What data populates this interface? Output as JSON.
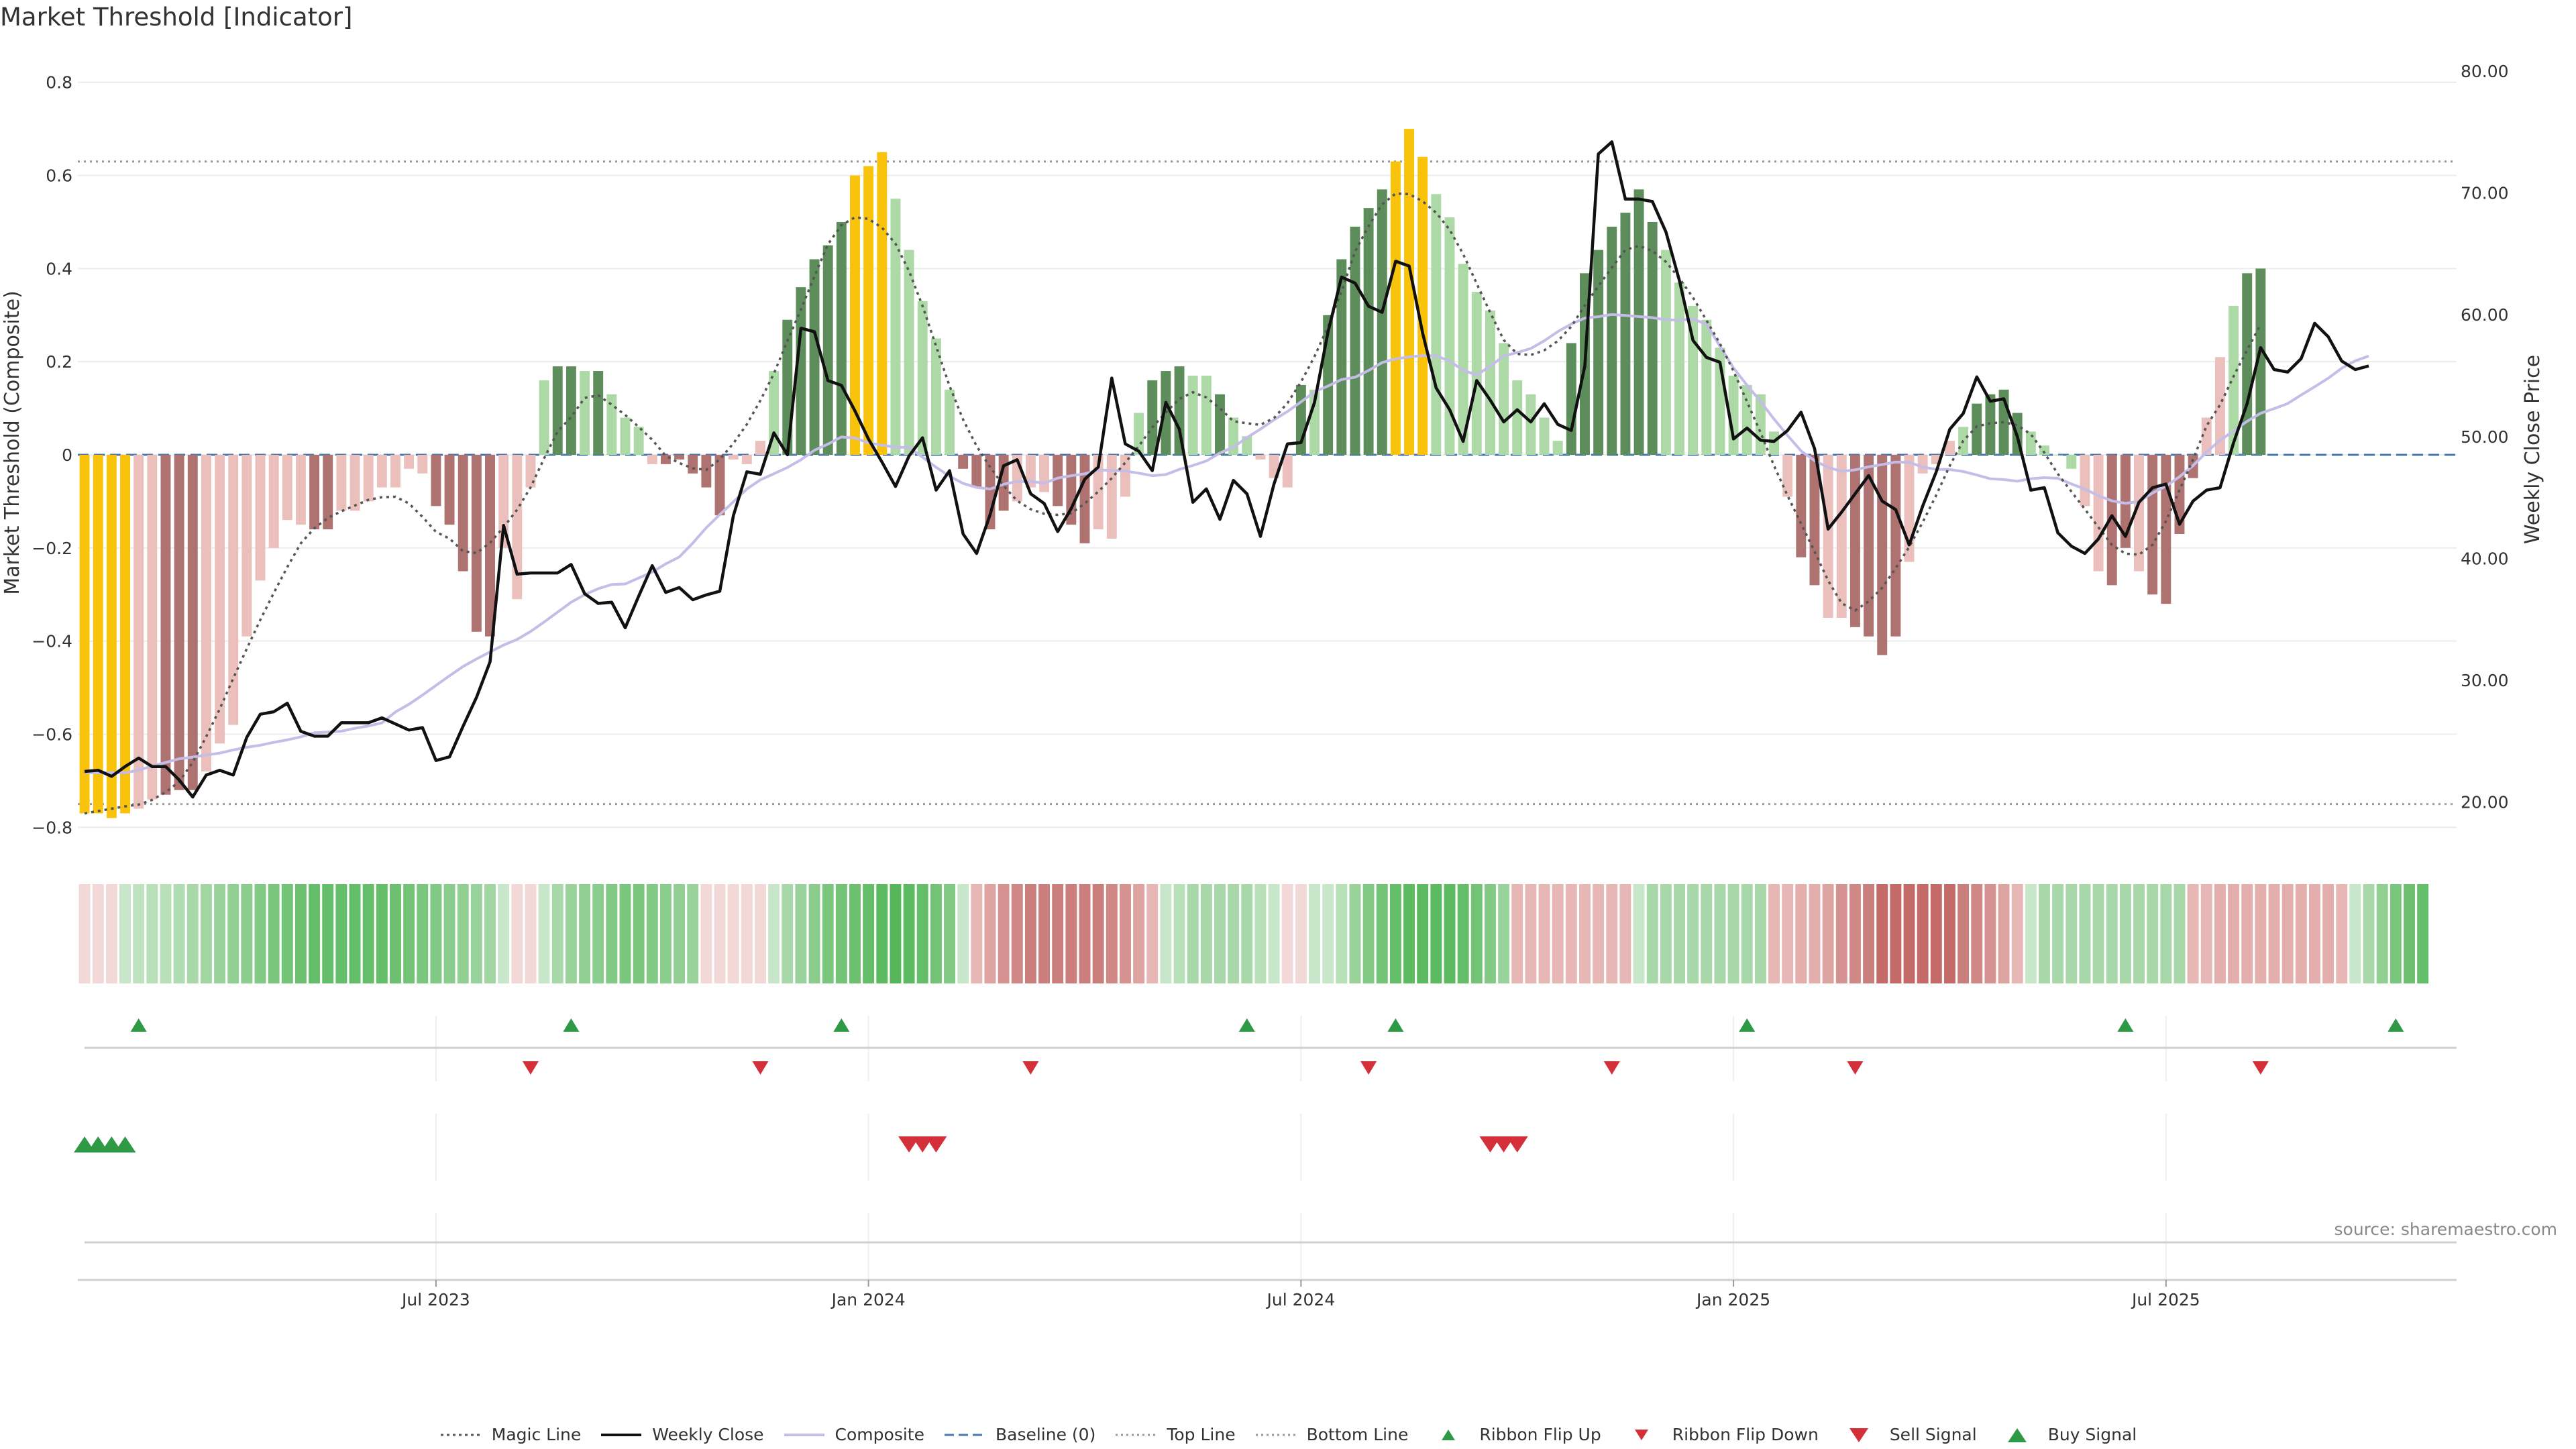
{
  "title": "Market Threshold [Indicator]",
  "source": "source: sharemaestro.com",
  "chart_data": {
    "type": "bar",
    "ylabel": "Market Threshold (Composite)",
    "y2label": "Weekly Close Price",
    "ylim": [
      -0.85,
      0.85
    ],
    "y2lim": [
      16.0,
      81.0
    ],
    "yticks": [
      "0.8",
      "0.6",
      "0.4",
      "0.2",
      "0",
      "−0.2",
      "−0.4",
      "−0.6",
      "−0.8"
    ],
    "yticks_values": [
      0.8,
      0.6,
      0.4,
      0.2,
      0,
      -0.2,
      -0.4,
      -0.6,
      -0.8
    ],
    "y2ticks": [
      "80.00",
      "70.00",
      "60.00",
      "50.00",
      "40.00",
      "30.00",
      "20.00"
    ],
    "y2ticks_values": [
      80,
      70,
      60,
      50,
      40,
      30,
      20
    ],
    "xticks": [
      "Jul 2023",
      "Jan 2024",
      "Jul 2024",
      "Jan 2025",
      "Jul 2025"
    ],
    "xticks_index": [
      26.5,
      58.5,
      90.5,
      122.5,
      154.5
    ],
    "top_line": 0.63,
    "bottom_line": -0.75,
    "n_weeks": 176,
    "composite": [
      -0.77,
      -0.77,
      -0.78,
      -0.77,
      -0.76,
      -0.74,
      -0.73,
      -0.72,
      -0.72,
      -0.68,
      -0.62,
      -0.58,
      -0.39,
      -0.27,
      -0.2,
      -0.14,
      -0.15,
      -0.16,
      -0.16,
      -0.12,
      -0.12,
      -0.1,
      -0.07,
      -0.07,
      -0.03,
      -0.04,
      -0.11,
      -0.15,
      -0.25,
      -0.38,
      -0.39,
      -0.2,
      -0.31,
      -0.07,
      0.16,
      0.19,
      0.19,
      0.18,
      0.18,
      0.13,
      0.08,
      0.06,
      -0.02,
      -0.02,
      -0.01,
      -0.04,
      -0.07,
      -0.13,
      -0.01,
      -0.02,
      0.03,
      0.18,
      0.29,
      0.36,
      0.42,
      0.45,
      0.5,
      0.6,
      0.62,
      0.65,
      0.55,
      0.44,
      0.33,
      0.25,
      0.14,
      -0.03,
      -0.07,
      -0.16,
      -0.12,
      -0.1,
      -0.07,
      -0.08,
      -0.11,
      -0.15,
      -0.19,
      -0.16,
      -0.18,
      -0.09,
      0.09,
      0.16,
      0.18,
      0.19,
      0.17,
      0.17,
      0.13,
      0.08,
      0.04,
      -0.01,
      -0.05,
      -0.07,
      0.15,
      0.14,
      0.3,
      0.42,
      0.49,
      0.53,
      0.57,
      0.63,
      0.7,
      0.64,
      0.56,
      0.51,
      0.41,
      0.35,
      0.31,
      0.24,
      0.16,
      0.13,
      0.08,
      0.03,
      0.24,
      0.39,
      0.44,
      0.49,
      0.52,
      0.57,
      0.5,
      0.44,
      0.37,
      0.32,
      0.29,
      0.23,
      0.17,
      0.15,
      0.13,
      0.05,
      -0.09,
      -0.22,
      -0.28,
      -0.35,
      -0.35,
      -0.37,
      -0.39,
      -0.43,
      -0.39,
      -0.23,
      -0.04,
      -0.02,
      0.03,
      0.06,
      0.11,
      0.13,
      0.14,
      0.09,
      0.05,
      0.02,
      0.0,
      -0.03,
      -0.11,
      -0.25,
      -0.28,
      -0.2,
      -0.25,
      -0.3,
      -0.32,
      -0.17,
      -0.05,
      0.08,
      0.21,
      0.32,
      0.39,
      0.4
    ],
    "weekly_close": [
      22.5,
      22.6,
      22.1,
      22.9,
      23.6,
      22.9,
      22.9,
      21.8,
      20.4,
      22.2,
      22.6,
      22.2,
      25.3,
      27.2,
      27.4,
      28.1,
      25.8,
      25.4,
      25.4,
      26.5,
      26.5,
      26.5,
      26.9,
      26.4,
      25.9,
      26.1,
      23.4,
      23.7,
      26.2,
      28.6,
      31.5,
      42.7,
      38.7,
      38.8,
      38.8,
      38.8,
      39.5,
      37.1,
      36.3,
      36.4,
      34.3,
      36.9,
      39.4,
      37.2,
      37.6,
      36.6,
      37.0,
      37.3,
      43.5,
      47.1,
      46.9,
      50.3,
      48.5,
      58.9,
      58.6,
      54.6,
      54.2,
      52.1,
      49.8,
      47.9,
      45.9,
      48.4,
      49.9,
      45.6,
      47.2,
      42.0,
      40.4,
      43.6,
      47.6,
      48.1,
      45.3,
      44.5,
      42.2,
      44.1,
      46.5,
      47.5,
      54.8,
      49.4,
      48.8,
      47.2,
      52.8,
      50.6,
      44.6,
      45.7,
      43.2,
      46.4,
      45.3,
      41.8,
      46.1,
      49.4,
      49.5,
      52.8,
      58.6,
      63.1,
      62.6,
      60.7,
      60.2,
      64.4,
      64.0,
      58.5,
      54.0,
      52.2,
      49.6,
      54.6,
      53.0,
      51.2,
      52.2,
      51.2,
      52.7,
      51.0,
      50.5,
      55.8,
      73.2,
      74.2,
      69.5,
      69.5,
      69.3,
      66.8,
      62.8,
      57.9,
      56.5,
      56.1,
      49.8,
      50.7,
      49.7,
      49.6,
      50.5,
      52.0,
      49.0,
      42.4,
      43.8,
      45.3,
      46.8,
      44.7,
      44.0,
      41.1,
      44.3,
      47.1,
      50.6,
      51.9,
      54.9,
      52.9,
      53.1,
      50.0,
      45.6,
      45.8,
      42.1,
      41.0,
      40.4,
      41.6,
      43.5,
      41.8,
      44.6,
      45.8,
      46.1,
      42.8,
      44.7,
      45.6,
      45.8,
      49.5,
      52.7,
      57.3,
      55.5,
      55.3,
      56.4,
      59.3,
      58.2,
      56.2,
      55.5,
      55.8
    ],
    "bar_colors": [
      "#f9c20b",
      "#f9c20b",
      "#f9c20b",
      "#f9c20b",
      "#ebbfbb",
      "#ebbfbb",
      "#ae7270",
      "#ae7270",
      "#ae7270",
      "#ebbfbb",
      "#ebbfbb",
      "#ebbfbb",
      "#ebbfbb",
      "#ebbfbb",
      "#ebbfbb",
      "#ebbfbb",
      "#ebbfbb",
      "#ae7270",
      "#ae7270",
      "#ebbfbb",
      "#ebbfbb",
      "#ebbfbb",
      "#ebbfbb",
      "#ebbfbb",
      "#ebbfbb",
      "#ebbfbb",
      "#ae7270",
      "#ae7270",
      "#ae7270",
      "#ae7270",
      "#ae7270",
      "#ebbfbb",
      "#ebbfbb",
      "#ebbfbb",
      "#acd9a5",
      "#5c8d5a",
      "#5c8d5a",
      "#acd9a5",
      "#5c8d5a",
      "#acd9a5",
      "#acd9a5",
      "#acd9a5",
      "#ebbfbb",
      "#ae7270",
      "#ae7270",
      "#ae7270",
      "#ae7270",
      "#ae7270",
      "#ebbfbb",
      "#ebbfbb",
      "#ebbfbb",
      "#acd9a5",
      "#5c8d5a",
      "#5c8d5a",
      "#5c8d5a",
      "#5c8d5a",
      "#5c8d5a",
      "#f9c20b",
      "#f9c20b",
      "#f9c20b",
      "#acd9a5",
      "#acd9a5",
      "#acd9a5",
      "#acd9a5",
      "#acd9a5",
      "#ae7270",
      "#ae7270",
      "#ae7270",
      "#ae7270",
      "#ebbfbb",
      "#ebbfbb",
      "#ebbfbb",
      "#ae7270",
      "#ae7270",
      "#ae7270",
      "#ebbfbb",
      "#ebbfbb",
      "#ebbfbb",
      "#acd9a5",
      "#5c8d5a",
      "#5c8d5a",
      "#5c8d5a",
      "#acd9a5",
      "#acd9a5",
      "#5c8d5a",
      "#acd9a5",
      "#acd9a5",
      "#ebbfbb",
      "#ebbfbb",
      "#ebbfbb",
      "#5c8d5a",
      "#acd9a5",
      "#5c8d5a",
      "#5c8d5a",
      "#5c8d5a",
      "#5c8d5a",
      "#5c8d5a",
      "#f9c20b",
      "#f9c20b",
      "#f9c20b",
      "#acd9a5",
      "#acd9a5",
      "#acd9a5",
      "#acd9a5",
      "#acd9a5",
      "#acd9a5",
      "#acd9a5",
      "#acd9a5",
      "#acd9a5",
      "#acd9a5",
      "#5c8d5a",
      "#5c8d5a",
      "#5c8d5a",
      "#5c8d5a",
      "#5c8d5a",
      "#5c8d5a",
      "#5c8d5a",
      "#acd9a5",
      "#acd9a5",
      "#acd9a5",
      "#acd9a5",
      "#acd9a5",
      "#acd9a5",
      "#acd9a5",
      "#acd9a5",
      "#acd9a5",
      "#ebbfbb",
      "#ae7270",
      "#ae7270",
      "#ebbfbb",
      "#ebbfbb",
      "#ae7270",
      "#ae7270",
      "#ae7270",
      "#ae7270",
      "#ebbfbb",
      "#ebbfbb",
      "#ebbfbb",
      "#ebbfbb",
      "#acd9a5",
      "#5c8d5a",
      "#5c8d5a",
      "#5c8d5a",
      "#5c8d5a",
      "#acd9a5",
      "#acd9a5",
      "#acd9a5",
      "#acd9a5",
      "#ebbfbb",
      "#ebbfbb",
      "#ae7270",
      "#ae7270",
      "#ebbfbb",
      "#ae7270",
      "#ae7270",
      "#ae7270",
      "#ae7270",
      "#ebbfbb",
      "#ebbfbb",
      "#acd9a5",
      "#5c8d5a",
      "#5c8d5a",
      "#5c8d5a",
      "#5c8d5a"
    ],
    "ribbon_colors": [
      "#f2d8d7",
      "#f2d8d7",
      "#f2d8d7",
      "#c8e6c9",
      "#bfe2c0",
      "#b7dfb8",
      "#b7dfb8",
      "#b0dcb1",
      "#a8d8a9",
      "#a1d5a2",
      "#99d29b",
      "#91cf93",
      "#8acc8c",
      "#82c985",
      "#7bc67d",
      "#73c376",
      "#6cc06f",
      "#64bd68",
      "#64bd68",
      "#64bd68",
      "#64bd68",
      "#64bd68",
      "#64bd68",
      "#6cc06f",
      "#73c376",
      "#7bc67d",
      "#82c985",
      "#8acc8c",
      "#91cf93",
      "#99d29b",
      "#a1d5a2",
      "#c8e6c9",
      "#f2d8d7",
      "#f2d8d7",
      "#c8e6c9",
      "#a8d8a9",
      "#99d29b",
      "#91cf93",
      "#8acc8c",
      "#82c985",
      "#7bc67d",
      "#7bc67d",
      "#82c985",
      "#8acc8c",
      "#91cf93",
      "#99d29b",
      "#f2d8d7",
      "#f2d8d7",
      "#f2d8d7",
      "#f2d8d7",
      "#f2d8d7",
      "#c8e6c9",
      "#a8d8a9",
      "#99d29b",
      "#8acc8c",
      "#7bc67d",
      "#73c376",
      "#6cc06f",
      "#64bd68",
      "#5cba61",
      "#55b75a",
      "#5cba61",
      "#64bd68",
      "#73c376",
      "#82c985",
      "#c8e6c9",
      "#e7b7b5",
      "#dea4a2",
      "#d59290",
      "#d08886",
      "#cb7f7d",
      "#cb7f7d",
      "#cb7f7d",
      "#cb7f7d",
      "#cb7f7d",
      "#cb7f7d",
      "#d08886",
      "#d59290",
      "#dea4a2",
      "#e7b7b5",
      "#c8e6c9",
      "#b7dfb8",
      "#a8d8a9",
      "#a8d8a9",
      "#a8d8a9",
      "#a8d8a9",
      "#a8d8a9",
      "#b7dfb8",
      "#c8e6c9",
      "#f2d8d7",
      "#f2d8d7",
      "#c8e6c9",
      "#c8e6c9",
      "#b7dfb8",
      "#99d29b",
      "#82c985",
      "#73c376",
      "#64bd68",
      "#5cba61",
      "#5cba61",
      "#5cba61",
      "#5cba61",
      "#64bd68",
      "#73c376",
      "#82c985",
      "#99d29b",
      "#e7b7b5",
      "#e7b7b5",
      "#e7b7b5",
      "#e7b7b5",
      "#e7b7b5",
      "#e7b7b5",
      "#e7b7b5",
      "#e7b7b5",
      "#e7b7b5",
      "#c8e6c9",
      "#a8d8a9",
      "#a8d8a9",
      "#a8d8a9",
      "#a8d8a9",
      "#a8d8a9",
      "#a8d8a9",
      "#a8d8a9",
      "#a8d8a9",
      "#a8d8a9",
      "#e7b7b5",
      "#e7b7b5",
      "#e3aeac",
      "#e3aeac",
      "#dea4a2",
      "#d59290",
      "#d08886",
      "#cb7f7d",
      "#c46b69",
      "#c46b69",
      "#c46b69",
      "#c46b69",
      "#c46b69",
      "#c46b69",
      "#cb7f7d",
      "#d08886",
      "#d59290",
      "#dea4a2",
      "#e7b7b5",
      "#c8e6c9",
      "#a8d8a9",
      "#a8d8a9",
      "#a8d8a9",
      "#a8d8a9",
      "#a8d8a9",
      "#a8d8a9",
      "#a8d8a9",
      "#a8d8a9",
      "#a8d8a9",
      "#a8d8a9",
      "#a8d8a9",
      "#e7b7b5",
      "#e7b7b5",
      "#e3aeac",
      "#e3aeac",
      "#e3aeac",
      "#e3aeac",
      "#e3aeac",
      "#e3aeac",
      "#e3aeac",
      "#e3aeac",
      "#e3aeac",
      "#e7b7b5",
      "#c8e6c9",
      "#a8d8a9",
      "#91cf93",
      "#7bc67d",
      "#6cc06f",
      "#64bd68"
    ],
    "ribbon_flip_up_weeks": [
      4,
      36,
      56,
      86,
      97,
      123,
      151,
      171
    ],
    "ribbon_flip_down_weeks": [
      33,
      50,
      70,
      95,
      113,
      131,
      161
    ],
    "buy_signal_weeks": [
      0,
      1,
      2,
      3
    ],
    "sell_signal_weeks": [
      61,
      62,
      63,
      104,
      105,
      106
    ],
    "legend": [
      {
        "label": "Magic Line",
        "symbol": "dotted-dark"
      },
      {
        "label": "Weekly Close",
        "symbol": "line-black"
      },
      {
        "label": "Composite",
        "symbol": "line-lavender"
      },
      {
        "label": "Baseline (0)",
        "symbol": "dashed-blue"
      },
      {
        "label": "Top Line",
        "symbol": "dotted-grey"
      },
      {
        "label": "Bottom Line",
        "symbol": "dotted-grey"
      },
      {
        "label": "Ribbon Flip Up",
        "symbol": "triangle-up-green"
      },
      {
        "label": "Ribbon Flip Down",
        "symbol": "triangle-down-red"
      },
      {
        "label": "Sell Signal",
        "symbol": "triangle-down-red-large"
      },
      {
        "label": "Buy Signal",
        "symbol": "triangle-up-green-large"
      }
    ],
    "colors": {
      "weekly_close": "#111111",
      "composite_line": "#c4bde8",
      "magic_line": "#555555",
      "baseline": "#4a78b5",
      "reference_lines": "#999999",
      "flip_up": "#2e9a46",
      "flip_down": "#d4303a"
    }
  }
}
